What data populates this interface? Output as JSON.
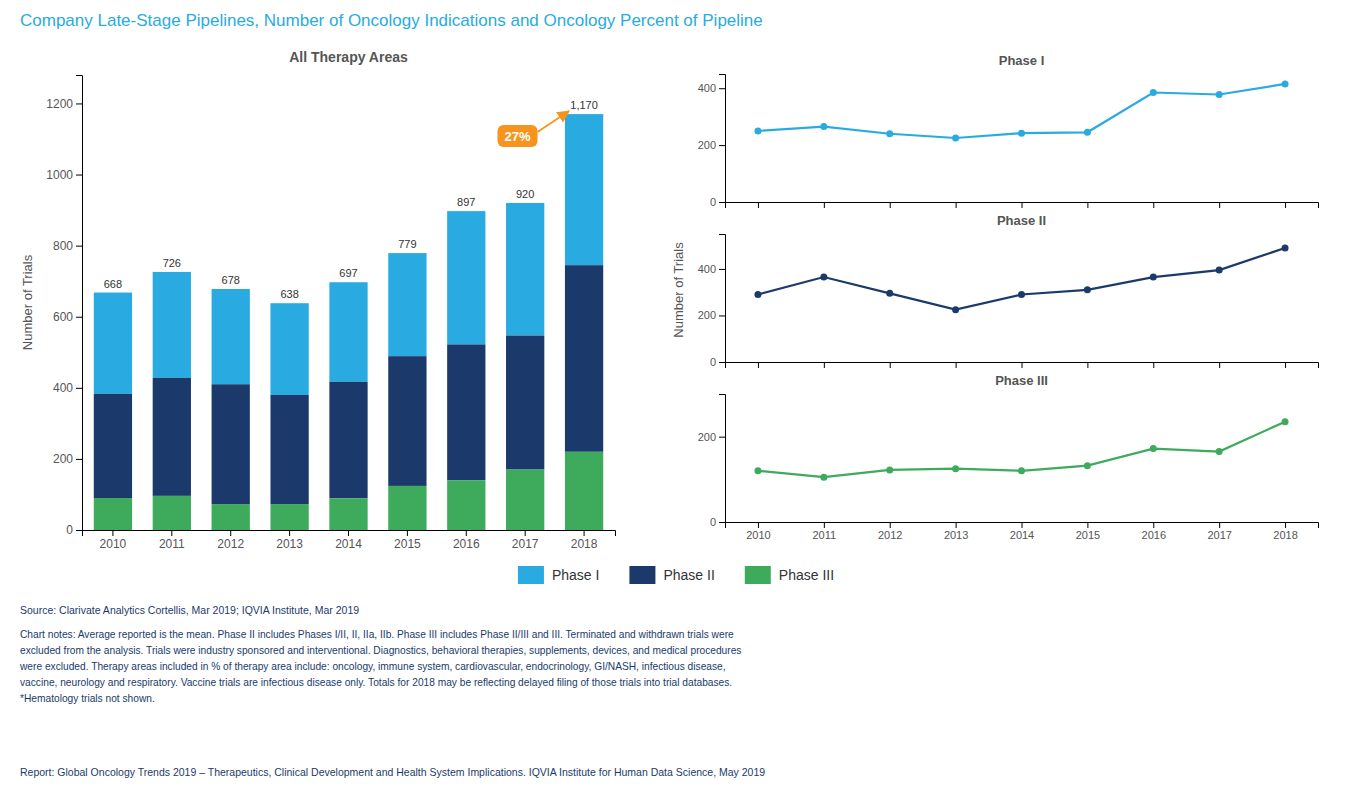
{
  "title": {
    "text": "Company Late-Stage Pipelines, Number of Oncology Indications and Oncology Percent of Pipeline",
    "color": "#29ABE2"
  },
  "notes": [
    "Source: Clarivate Analytics Cortellis, Mar 2019; IQVIA Institute, Mar 2019",
    "Chart notes: Average reported is the mean. Phase II includes Phases I/II, II, IIa, IIb. Phase III includes Phase II/III and III. Terminated and withdrawn trials were\nexcluded from the analysis. Trials were industry sponsored and interventional. Diagnostics, behavioral therapies, supplements, devices, and medical procedures\nwere excluded. Therapy areas included in % of therapy area include: oncology, immune system, cardiovascular, endocrinology, GI/NASH, infectious disease,\nvaccine, neurology and respiratory. Vaccine trials are infectious disease only. Totals for 2018 may be reflecting delayed filing of those trials into trial databases.\n*Hematology trials not shown.",
    "Report: Global Oncology Trends 2019 – Therapeutics, Clinical Development and Health System Implications. IQVIA Institute for Human Data Science, May 2019"
  ],
  "chart_data": [
    {
      "type": "bar",
      "title": "All Therapy Areas",
      "ylabel": "Number of Trials",
      "stacked": true,
      "categories": [
        "2010",
        "2011",
        "2012",
        "2013",
        "2014",
        "2015",
        "2016",
        "2017",
        "2018"
      ],
      "series": [
        {
          "name": "Phase I",
          "color": "#29ABE2",
          "values": [
            285,
            298,
            268,
            258,
            280,
            290,
            375,
            373,
            425
          ]
        },
        {
          "name": "Phase II",
          "color": "#1B3A6B",
          "values": [
            293,
            332,
            337,
            307,
            328,
            365,
            382,
            377,
            525
          ]
        },
        {
          "name": "Phase III",
          "color": "#3DAA5C",
          "values": [
            90,
            96,
            73,
            73,
            89,
            124,
            140,
            170,
            220
          ]
        }
      ],
      "totals": [
        668,
        726,
        678,
        638,
        697,
        779,
        897,
        920,
        1170
      ],
      "total_labels": [
        "668",
        "726",
        "678",
        "638",
        "697",
        "779",
        "897",
        "920",
        "1,170"
      ],
      "annotations": [
        {
          "text": "27%",
          "category": "2018",
          "color": "#F7941D"
        }
      ],
      "ylim": [
        0,
        1280
      ],
      "yticks": [
        0,
        200,
        400,
        600,
        800,
        1000,
        1200
      ],
      "grid": false,
      "legend": "bottom"
    },
    {
      "type": "line",
      "title": "Phase I",
      "x": [
        2010,
        2011,
        2012,
        2013,
        2014,
        2015,
        2016,
        2017,
        2018
      ],
      "values": [
        250,
        265,
        240,
        225,
        242,
        245,
        385,
        378,
        415
      ],
      "color": "#29ABE2",
      "marker": "circle",
      "xlim": [
        2009.5,
        2018.5
      ],
      "xticks": [
        2010,
        2011,
        2012,
        2013,
        2014,
        2015,
        2016,
        2017,
        2018
      ],
      "ylim": [
        0,
        450
      ],
      "yticks": [
        0,
        200,
        400
      ],
      "grid": false,
      "tick_labels": "y"
    },
    {
      "type": "line",
      "title": "Phase II",
      "ylabel": "Number of Trials",
      "x": [
        2010,
        2011,
        2012,
        2013,
        2014,
        2015,
        2016,
        2017,
        2018
      ],
      "values": [
        290,
        365,
        295,
        225,
        290,
        310,
        365,
        395,
        490
      ],
      "color": "#1B3A6B",
      "marker": "circle",
      "xlim": [
        2009.5,
        2018.5
      ],
      "xticks": [
        2010,
        2011,
        2012,
        2013,
        2014,
        2015,
        2016,
        2017,
        2018
      ],
      "ylim": [
        0,
        550
      ],
      "yticks": [
        0,
        200,
        400
      ],
      "grid": false,
      "tick_labels": "y"
    },
    {
      "type": "line",
      "title": "Phase III",
      "x": [
        2010,
        2011,
        2012,
        2013,
        2014,
        2015,
        2016,
        2017,
        2018
      ],
      "values": [
        120,
        105,
        122,
        125,
        120,
        132,
        172,
        165,
        235
      ],
      "color": "#3DAA5C",
      "marker": "circle",
      "xlim": [
        2009.5,
        2018.5
      ],
      "xticks": [
        2010,
        2011,
        2012,
        2013,
        2014,
        2015,
        2016,
        2017,
        2018
      ],
      "ylim": [
        0,
        300
      ],
      "yticks": [
        0,
        200
      ],
      "grid": false,
      "tick_labels": true
    }
  ]
}
